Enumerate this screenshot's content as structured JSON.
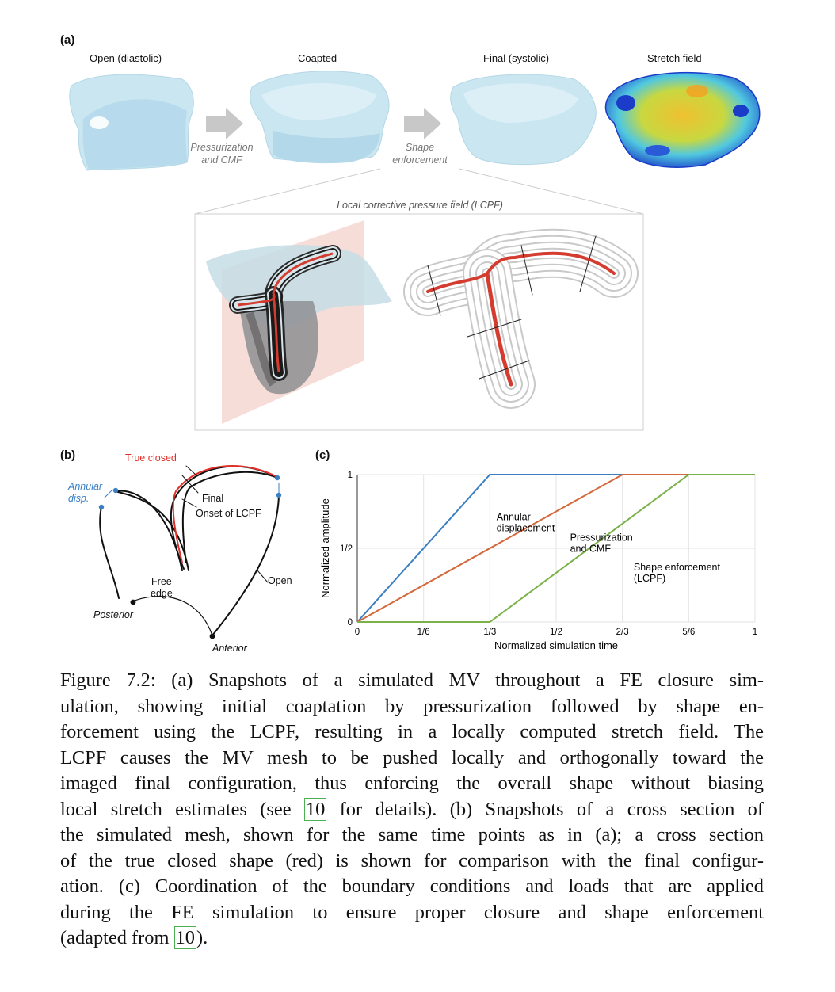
{
  "panel_a": {
    "label": "(a)",
    "stage_titles": [
      "Open (diastolic)",
      "Coapted",
      "Final (systolic)",
      "Stretch field"
    ],
    "arrow1": [
      "Pressurization",
      "and CMF"
    ],
    "arrow2": [
      "Shape",
      "enforcement"
    ],
    "lcpf_title": "Local corrective pressure field (LCPF)"
  },
  "panel_b": {
    "label": "(b)",
    "true_closed": "True closed",
    "annular": [
      "Annular",
      "disp."
    ],
    "final": "Final",
    "onset": "Onset of LCPF",
    "open": "Open",
    "free_edge": [
      "Free",
      "edge"
    ],
    "posterior": "Posterior",
    "anterior": "Anterior"
  },
  "panel_c": {
    "label": "(c)"
  },
  "chart_data": {
    "type": "line",
    "xlabel": "Normalized simulation time",
    "ylabel": "Normalized amplitude",
    "xlim": [
      0,
      1
    ],
    "ylim": [
      0,
      1
    ],
    "xticks": [
      "0",
      "1/6",
      "1/3",
      "1/2",
      "2/3",
      "5/6",
      "1"
    ],
    "yticks": [
      "0",
      "1/2",
      "1"
    ],
    "grid": true,
    "series": [
      {
        "name": "Annular displacement",
        "color": "#3a7fc1",
        "x": [
          0,
          0.3333,
          1
        ],
        "y": [
          0,
          1,
          1
        ]
      },
      {
        "name": "Pressurization and CMF",
        "color": "#d4683a",
        "x": [
          0,
          0.6667,
          1
        ],
        "y": [
          0,
          1,
          1
        ]
      },
      {
        "name": "Shape enforcement (LCPF)",
        "color": "#7bb148",
        "x": [
          0,
          0.3333,
          0.8333,
          1
        ],
        "y": [
          0,
          0,
          1,
          1
        ]
      }
    ],
    "annotations": [
      [
        "Annular",
        "displacement"
      ],
      [
        "Pressurization",
        "and CMF"
      ],
      [
        "Shape enforcement",
        "(LCPF)"
      ]
    ]
  },
  "caption": {
    "lines": [
      "Figure 7.2: (a) Snapshots of a simulated MV throughout a FE closure sim-",
      "ulation, showing initial coaptation by pressurization followed by shape en-",
      "forcement using the LCPF, resulting in a locally computed stretch field. The",
      "LCPF causes the MV mesh to be pushed locally and orthogonally toward the",
      "imaged final configuration, thus enforcing the overall shape without biasing"
    ],
    "line6_pre": "local stretch estimates (see ",
    "ref": "10",
    "line6_post": " for details). (b) Snapshots of a cross section of",
    "lines2": [
      "the simulated mesh, shown for the same time points as in (a); a cross section",
      "of the true closed shape (red) is shown for comparison with the final configur-",
      "ation. (c) Coordination of the boundary conditions and loads that are applied",
      "during the FE simulation to ensure proper closure and shape enforcement"
    ],
    "last_pre": "(adapted from ",
    "last_post": ")."
  }
}
